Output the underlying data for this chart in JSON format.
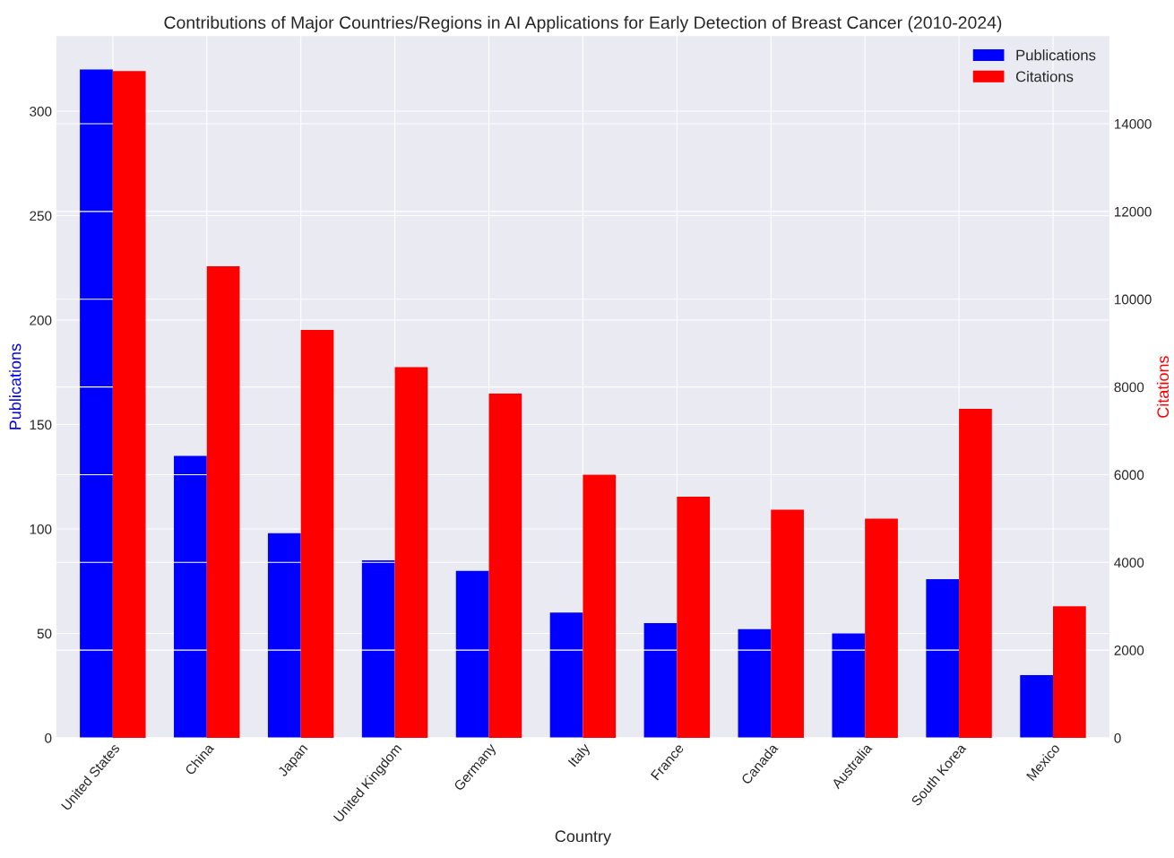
{
  "chart_data": {
    "type": "bar",
    "title": "Contributions of Major Countries/Regions in AI Applications for Early Detection of Breast Cancer (2010-2024)",
    "xlabel": "Country",
    "ylabel": "Publications",
    "y2label": "Citations",
    "categories": [
      "United States",
      "China",
      "Japan",
      "United Kingdom",
      "Germany",
      "Italy",
      "France",
      "Canada",
      "Australia",
      "South Korea",
      "Mexico"
    ],
    "series": [
      {
        "name": "Publications",
        "color": "#0000ff",
        "values": [
          320,
          135,
          98,
          85,
          80,
          60,
          55,
          52,
          50,
          76,
          30
        ]
      },
      {
        "name": "Citations",
        "color": "#ff0000",
        "axis": "y2",
        "values": [
          15200,
          10750,
          9300,
          8450,
          7850,
          6000,
          5500,
          5200,
          5000,
          7500,
          3000
        ]
      }
    ],
    "ylim": [
      0,
      336
    ],
    "yticks": [
      0,
      50,
      100,
      150,
      200,
      250,
      300
    ],
    "y2lim": [
      0,
      16000
    ],
    "y2ticks": [
      0,
      2000,
      4000,
      6000,
      8000,
      10000,
      12000,
      14000
    ],
    "grid": true,
    "legend": "top right"
  }
}
